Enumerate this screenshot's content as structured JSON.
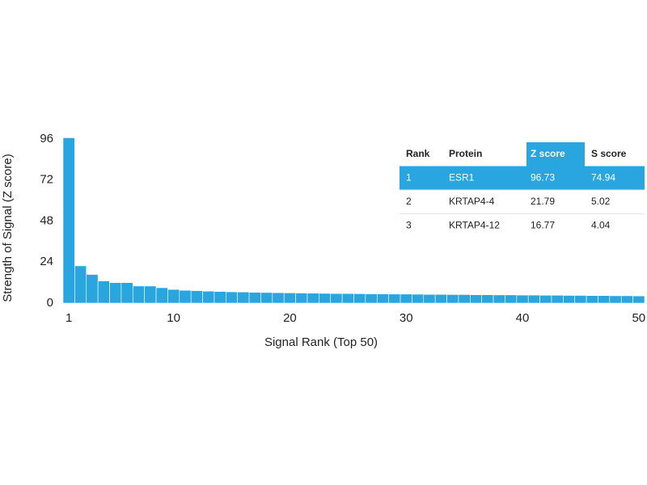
{
  "chart_data": {
    "type": "bar",
    "x_label": "Signal Rank (Top 50)",
    "y_label": "Strength of Signal (Z score)",
    "x": [
      1,
      2,
      3,
      4,
      5,
      6,
      7,
      8,
      9,
      10,
      11,
      12,
      13,
      14,
      15,
      16,
      17,
      18,
      19,
      20,
      21,
      22,
      23,
      24,
      25,
      26,
      27,
      28,
      29,
      30,
      31,
      32,
      33,
      34,
      35,
      36,
      37,
      38,
      39,
      40,
      41,
      42,
      43,
      44,
      45,
      46,
      47,
      48,
      49,
      50
    ],
    "values": [
      96.73,
      21.79,
      16.77,
      13,
      12,
      12,
      10,
      10,
      9,
      8,
      7.5,
      7.3,
      7,
      6.8,
      6.6,
      6.5,
      6.3,
      6.2,
      6.1,
      6,
      5.9,
      5.8,
      5.7,
      5.6,
      5.6,
      5.5,
      5.4,
      5.4,
      5.3,
      5.3,
      5.2,
      5.1,
      5.1,
      5,
      5,
      4.9,
      4.9,
      4.8,
      4.8,
      4.7,
      4.7,
      4.6,
      4.6,
      4.5,
      4.5,
      4.4,
      4.4,
      4.3,
      4.3,
      4.2
    ],
    "color": "#29a6df",
    "xlim": [
      0.5,
      50.5
    ],
    "xticks": [
      1,
      10,
      20,
      30,
      40,
      50
    ],
    "ylim": [
      0,
      96
    ],
    "yticks": [
      0,
      24,
      48,
      72,
      96
    ],
    "grid": false,
    "table": {
      "columns": [
        "Rank",
        "Protein",
        "Z score",
        "S score"
      ],
      "highlight_color": "#29a6df",
      "rows": [
        [
          1,
          "ESR1",
          96.73,
          74.94
        ],
        [
          2,
          "KRTAP4-4",
          21.79,
          5.02
        ],
        [
          3,
          "KRTAP4-12",
          16.77,
          4.04
        ]
      ]
    }
  }
}
